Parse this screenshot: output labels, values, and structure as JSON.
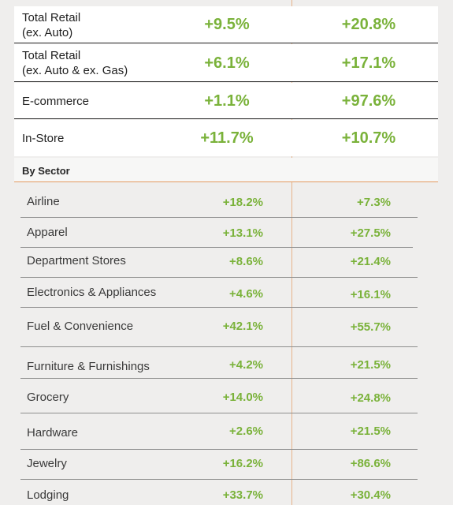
{
  "summary": [
    {
      "label_line1": "Total Retail",
      "label_line2": "(ex. Auto)",
      "v1": "+9.5%",
      "v2": "+20.8%"
    },
    {
      "label_line1": "Total Retail",
      "label_line2": "(ex. Auto & ex. Gas)",
      "v1": "+6.1%",
      "v2": "+17.1%"
    },
    {
      "label_line1": "E-commerce",
      "label_line2": "",
      "v1": "+1.1%",
      "v2": "+97.6%"
    },
    {
      "label_line1": "In-Store",
      "label_line2": "",
      "v1": "+11.7%",
      "v2": "+10.7%"
    }
  ],
  "section": {
    "title": "By Sector"
  },
  "sectors": [
    {
      "name": "Airline",
      "v1": "+18.2%",
      "v2": "+7.3%"
    },
    {
      "name": "Apparel",
      "v1": "+13.1%",
      "v2": "+27.5%"
    },
    {
      "name": "Department Stores",
      "v1": "+8.6%",
      "v2": "+21.4%"
    },
    {
      "name": "Electronics & Appliances",
      "v1": "+4.6%",
      "v2": "+16.1%"
    },
    {
      "name": "Fuel & Convenience",
      "v1": "+42.1%",
      "v2": "+55.7%"
    },
    {
      "name": "Furniture & Furnishings",
      "v1": "+4.2%",
      "v2": "+21.5%"
    },
    {
      "name": "Grocery",
      "v1": "+14.0%",
      "v2": "+24.8%"
    },
    {
      "name": "Hardware",
      "v1": "+2.6%",
      "v2": "+21.5%"
    },
    {
      "name": "Jewelry",
      "v1": "+16.2%",
      "v2": "+86.6%"
    },
    {
      "name": "Lodging",
      "v1": "+33.7%",
      "v2": "+30.4%"
    }
  ],
  "colors": {
    "positive": "#7ab23a",
    "accent_line": "#e39a61",
    "background": "#efeeed"
  }
}
